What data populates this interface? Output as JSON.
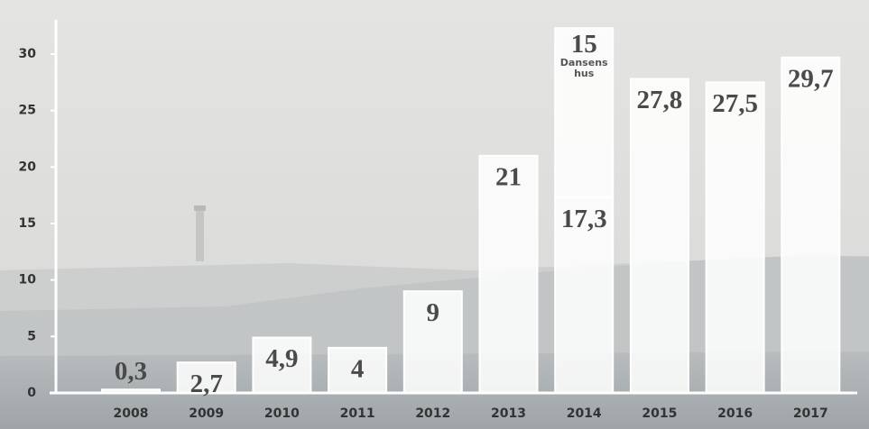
{
  "chart_data": {
    "type": "stacked_bar",
    "categories": [
      "2008",
      "2009",
      "2010",
      "2011",
      "2012",
      "2013",
      "2014",
      "2015",
      "2016",
      "2017"
    ],
    "series": [
      {
        "color": "#ffffff",
        "values": [
          0.3,
          2.7,
          4.9,
          4,
          9,
          21,
          17.3,
          27.8,
          27.5,
          29.7
        ],
        "value_labels": [
          "0,3",
          "2,7",
          "4,9",
          "4",
          "9",
          "21",
          "17,3",
          "27,8",
          "27,5",
          "29,7"
        ]
      },
      {
        "name": "Dansens hus",
        "color": "#ffffff",
        "values": [
          null,
          null,
          null,
          null,
          null,
          null,
          15,
          null,
          null,
          null
        ],
        "value_labels": [
          null,
          null,
          null,
          null,
          null,
          null,
          "15",
          null,
          null,
          null
        ]
      }
    ],
    "ylim": [
      0,
      30
    ],
    "yticks": [
      0,
      5,
      10,
      15,
      20,
      25,
      30
    ]
  }
}
